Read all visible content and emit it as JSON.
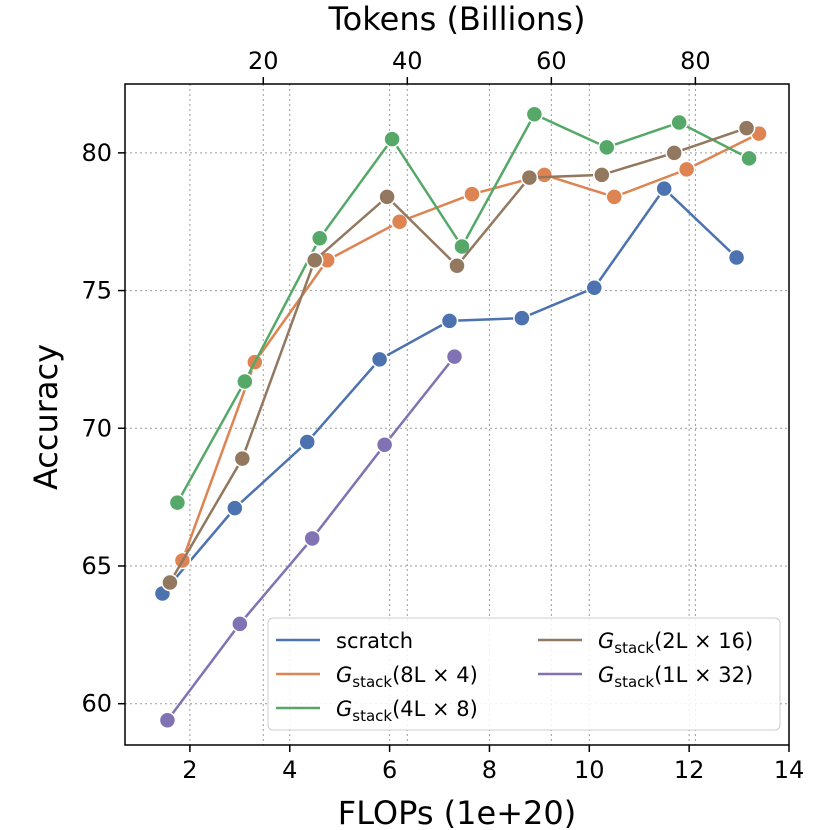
{
  "chart_data": {
    "type": "line",
    "xlabel": "FLOPs (1e+20)",
    "ylabel": "Accuracy",
    "top_xlabel": "Tokens (Billions)",
    "xlim": [
      0.7,
      14
    ],
    "ylim": [
      58.5,
      82.5
    ],
    "xticks": [
      2,
      4,
      6,
      8,
      10,
      12,
      14
    ],
    "yticks": [
      60,
      65,
      70,
      75,
      80
    ],
    "top_xlim": [
      0.8,
      93.0
    ],
    "top_xticks": [
      20,
      40,
      60,
      80
    ],
    "grid": true,
    "legend_position": "lower-right",
    "series": [
      {
        "name": "scratch",
        "legend": {
          "base": "scratch",
          "sub": "",
          "arg": ""
        },
        "color": "#4c72b0",
        "x": [
          1.45,
          2.9,
          4.35,
          5.8,
          7.2,
          8.65,
          10.1,
          11.5,
          12.95
        ],
        "y": [
          64.0,
          67.1,
          69.5,
          72.5,
          73.9,
          74.0,
          75.1,
          78.7,
          76.2
        ]
      },
      {
        "name": "Gstack(8L×4)",
        "legend": {
          "base": "G",
          "sub": "stack",
          "arg": "(8L × 4)"
        },
        "color": "#dd8452",
        "x": [
          1.85,
          3.3,
          4.75,
          6.2,
          7.65,
          9.1,
          10.5,
          11.95,
          13.4
        ],
        "y": [
          65.2,
          72.4,
          76.1,
          77.5,
          78.5,
          79.2,
          78.4,
          79.4,
          80.7
        ]
      },
      {
        "name": "Gstack(4L×8)",
        "legend": {
          "base": "G",
          "sub": "stack",
          "arg": "(4L × 8)"
        },
        "color": "#55a868",
        "x": [
          1.75,
          3.1,
          4.6,
          6.05,
          7.45,
          8.9,
          10.35,
          11.8,
          13.2
        ],
        "y": [
          67.3,
          71.7,
          76.9,
          80.5,
          76.6,
          81.4,
          80.2,
          81.1,
          79.8
        ]
      },
      {
        "name": "Gstack(2L×16)",
        "legend": {
          "base": "G",
          "sub": "stack",
          "arg": "(2L × 16)"
        },
        "color": "#937860",
        "x": [
          1.6,
          3.05,
          4.5,
          5.95,
          7.35,
          8.8,
          10.25,
          11.7,
          13.15
        ],
        "y": [
          64.4,
          68.9,
          76.1,
          78.4,
          75.9,
          79.1,
          79.2,
          80.0,
          80.9
        ]
      },
      {
        "name": "Gstack(1L×32)",
        "legend": {
          "base": "G",
          "sub": "stack",
          "arg": "(1L × 32)"
        },
        "color": "#8172b3",
        "x": [
          1.55,
          3.0,
          4.45,
          5.9,
          7.3
        ],
        "y": [
          59.4,
          62.9,
          66.0,
          69.4,
          72.6
        ]
      }
    ]
  }
}
